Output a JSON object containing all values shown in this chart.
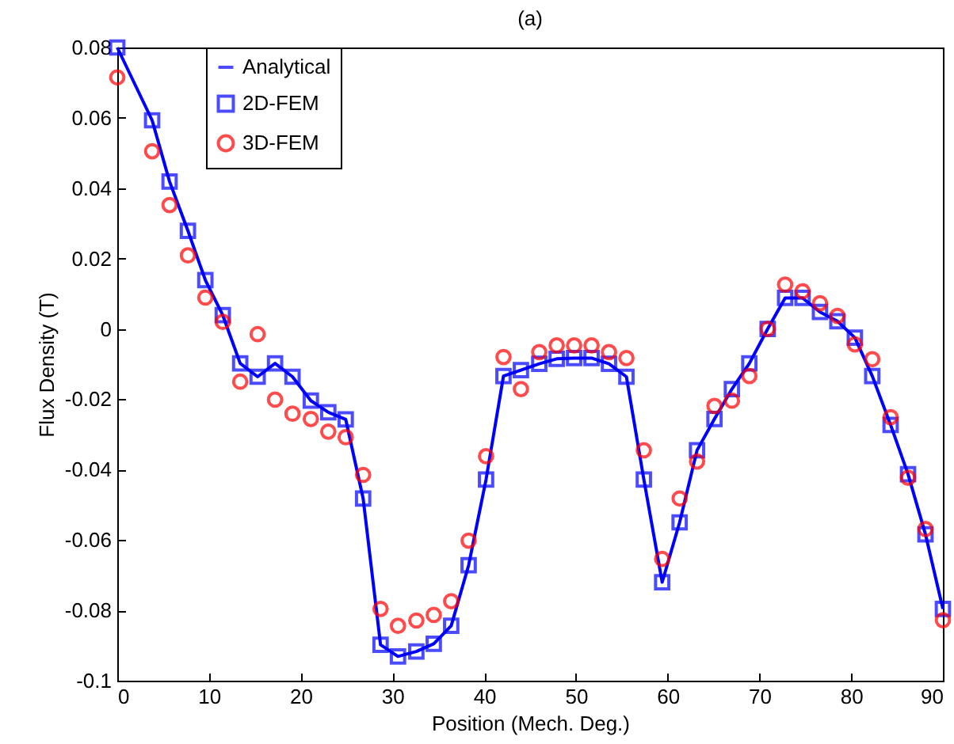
{
  "chart_data": {
    "type": "line",
    "title": "(a)",
    "xlabel": "Position (Mech. Deg.)",
    "ylabel": "Flux Density (T)",
    "x": [
      0,
      3.8,
      5.7,
      7.7,
      9.6,
      11.5,
      13.4,
      15.3,
      17.2,
      19.1,
      21.1,
      23.0,
      24.9,
      26.8,
      28.7,
      30.6,
      32.6,
      34.5,
      36.4,
      38.3,
      40.2,
      42.1,
      44.0,
      46.0,
      47.9,
      49.8,
      51.7,
      53.6,
      55.5,
      57.4,
      59.4,
      61.3,
      63.2,
      65.1,
      67.0,
      68.9,
      70.9,
      72.8,
      74.7,
      76.6,
      78.5,
      80.4,
      82.3,
      84.3,
      86.2,
      88.1,
      90.0
    ],
    "series": [
      {
        "name": "Analytical",
        "color": "#0000ff",
        "marker": "none",
        "values": [
          0.08,
          0.0593,
          0.0419,
          0.0279,
          0.0139,
          0.0039,
          -0.0098,
          -0.0136,
          -0.0098,
          -0.0136,
          -0.0204,
          -0.0237,
          -0.0257,
          -0.0482,
          -0.0898,
          -0.0931,
          -0.0917,
          -0.0895,
          -0.0844,
          -0.0672,
          -0.0428,
          -0.0134,
          -0.0117,
          -0.0099,
          -0.0085,
          -0.0083,
          -0.0083,
          -0.0099,
          -0.0136,
          -0.0428,
          -0.072,
          -0.055,
          -0.0345,
          -0.0256,
          -0.0171,
          -0.0098,
          0.0,
          0.0088,
          0.0088,
          0.0048,
          0.0022,
          -0.0025,
          -0.0134,
          -0.0273,
          -0.0413,
          -0.0584,
          -0.0796
        ]
      },
      {
        "name": "2D-FEM",
        "type": "scatter",
        "color": "#0000ff",
        "marker": "square",
        "values": [
          0.08,
          0.0593,
          0.0419,
          0.0279,
          0.0139,
          0.0039,
          -0.0098,
          -0.0136,
          -0.0098,
          -0.0136,
          -0.0204,
          -0.0237,
          -0.0257,
          -0.0482,
          -0.0898,
          -0.0931,
          -0.0917,
          -0.0895,
          -0.0844,
          -0.0672,
          -0.0428,
          -0.0134,
          -0.0117,
          -0.0099,
          -0.0085,
          -0.0083,
          -0.0083,
          -0.0099,
          -0.0136,
          -0.0428,
          -0.072,
          -0.055,
          -0.0345,
          -0.0256,
          -0.0171,
          -0.0098,
          0.0,
          0.0088,
          0.0088,
          0.0048,
          0.0022,
          -0.0025,
          -0.0134,
          -0.0273,
          -0.0413,
          -0.0584,
          -0.0796
        ]
      },
      {
        "name": "3D-FEM",
        "type": "scatter",
        "color": "#ff0000",
        "marker": "circle",
        "values": [
          0.0715,
          0.0505,
          0.0352,
          0.0209,
          0.0089,
          0.002,
          -0.015,
          -0.0015,
          -0.0201,
          -0.0241,
          -0.0256,
          -0.0292,
          -0.0308,
          -0.0415,
          -0.0796,
          -0.0844,
          -0.0829,
          -0.0813,
          -0.0774,
          -0.0602,
          -0.0362,
          -0.008,
          -0.0171,
          -0.0066,
          -0.0047,
          -0.0047,
          -0.0047,
          -0.0066,
          -0.0083,
          -0.0345,
          -0.0654,
          -0.0482,
          -0.0377,
          -0.0219,
          -0.0204,
          -0.0134,
          0.0,
          0.0126,
          0.0107,
          0.0073,
          0.0037,
          -0.0044,
          -0.0086,
          -0.0251,
          -0.0423,
          -0.0569,
          -0.0828
        ]
      }
    ],
    "xlim": [
      0,
      90
    ],
    "xticks": [
      0,
      10,
      20,
      30,
      40,
      50,
      60,
      70,
      80,
      90
    ],
    "ylim": [
      -0.1,
      0.08
    ],
    "yticks": [
      {
        "value": -0.1,
        "label": "-0.1"
      },
      {
        "value": -0.08,
        "label": "-0.08"
      },
      {
        "value": -0.06,
        "label": "-0.06"
      },
      {
        "value": -0.04,
        "label": "-0.04"
      },
      {
        "value": -0.02,
        "label": "-0.02"
      },
      {
        "value": 0,
        "label": "0"
      },
      {
        "value": 0.02,
        "label": "0.02"
      },
      {
        "value": 0.04,
        "label": "0.04"
      },
      {
        "value": 0.06,
        "label": "0.06"
      },
      {
        "value": 0.08,
        "label": "0.08"
      }
    ],
    "legend": "top left",
    "grid": false
  }
}
